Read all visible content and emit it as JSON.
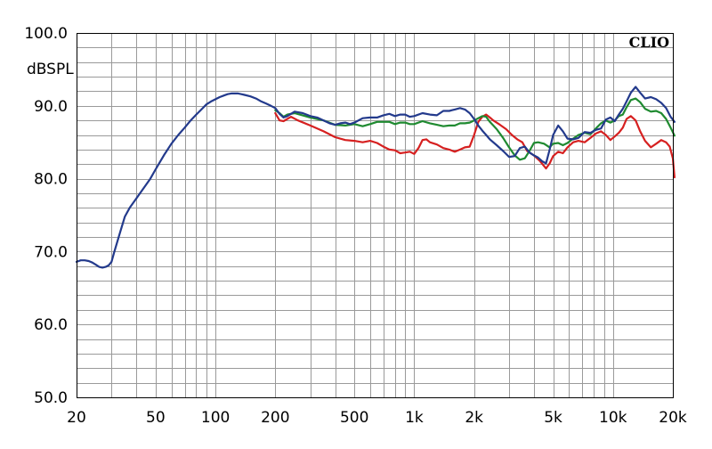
{
  "chart_data": {
    "type": "line",
    "title": "",
    "brand": "CLIO",
    "xlabel": "",
    "ylabel": "dBSPL",
    "x_scale": "log",
    "xlim": [
      20,
      20000
    ],
    "ylim": [
      50,
      100
    ],
    "grid": true,
    "legend": "none",
    "x_ticks": [
      {
        "value": 20,
        "label": "20"
      },
      {
        "value": 50,
        "label": "50"
      },
      {
        "value": 100,
        "label": "100"
      },
      {
        "value": 200,
        "label": "200"
      },
      {
        "value": 500,
        "label": "500"
      },
      {
        "value": 1000,
        "label": "1k"
      },
      {
        "value": 2000,
        "label": "2k"
      },
      {
        "value": 5000,
        "label": "5k"
      },
      {
        "value": 10000,
        "label": "10k"
      },
      {
        "value": 20000,
        "label": "20k"
      }
    ],
    "y_ticks": [
      {
        "value": 100,
        "label": "100.0"
      },
      {
        "value": 90,
        "label": "90.0"
      },
      {
        "value": 80,
        "label": "80.0"
      },
      {
        "value": 70,
        "label": "70.0"
      },
      {
        "value": 60,
        "label": "60.0"
      },
      {
        "value": 50,
        "label": "50.0"
      }
    ],
    "series": [
      {
        "color": "#d62020",
        "points": [
          [
            200,
            89.0
          ],
          [
            210,
            88.0
          ],
          [
            220,
            87.9
          ],
          [
            240,
            88.5
          ],
          [
            260,
            88.0
          ],
          [
            300,
            87.3
          ],
          [
            350,
            86.5
          ],
          [
            400,
            85.7
          ],
          [
            450,
            85.3
          ],
          [
            500,
            85.2
          ],
          [
            550,
            85.0
          ],
          [
            600,
            85.2
          ],
          [
            650,
            84.9
          ],
          [
            700,
            84.4
          ],
          [
            750,
            84.0
          ],
          [
            800,
            83.9
          ],
          [
            850,
            83.5
          ],
          [
            900,
            83.6
          ],
          [
            950,
            83.7
          ],
          [
            1000,
            83.4
          ],
          [
            1050,
            84.2
          ],
          [
            1100,
            85.3
          ],
          [
            1150,
            85.4
          ],
          [
            1200,
            85.0
          ],
          [
            1300,
            84.7
          ],
          [
            1400,
            84.2
          ],
          [
            1500,
            84.0
          ],
          [
            1600,
            83.7
          ],
          [
            1700,
            84.0
          ],
          [
            1800,
            84.3
          ],
          [
            1900,
            84.4
          ],
          [
            2000,
            86.0
          ],
          [
            2100,
            87.8
          ],
          [
            2200,
            88.5
          ],
          [
            2300,
            88.8
          ],
          [
            2400,
            88.4
          ],
          [
            2500,
            88.0
          ],
          [
            2700,
            87.4
          ],
          [
            2900,
            86.8
          ],
          [
            3100,
            86.0
          ],
          [
            3300,
            85.4
          ],
          [
            3500,
            85.0
          ],
          [
            3700,
            83.8
          ],
          [
            4000,
            83.2
          ],
          [
            4300,
            82.4
          ],
          [
            4600,
            81.4
          ],
          [
            4800,
            82.1
          ],
          [
            5000,
            83.1
          ],
          [
            5300,
            83.7
          ],
          [
            5600,
            83.5
          ],
          [
            5900,
            84.3
          ],
          [
            6300,
            85.0
          ],
          [
            6700,
            85.2
          ],
          [
            7200,
            85.0
          ],
          [
            7700,
            85.6
          ],
          [
            8200,
            86.2
          ],
          [
            8700,
            86.5
          ],
          [
            9200,
            86.0
          ],
          [
            9700,
            85.3
          ],
          [
            10200,
            85.8
          ],
          [
            10700,
            86.3
          ],
          [
            11200,
            87.0
          ],
          [
            11700,
            88.2
          ],
          [
            12300,
            88.6
          ],
          [
            13000,
            88.0
          ],
          [
            13700,
            86.5
          ],
          [
            14500,
            85.2
          ],
          [
            15500,
            84.3
          ],
          [
            16500,
            84.8
          ],
          [
            17500,
            85.3
          ],
          [
            18500,
            85.0
          ],
          [
            19300,
            84.4
          ],
          [
            20000,
            82.8
          ],
          [
            20500,
            80.2
          ]
        ]
      },
      {
        "color": "#1f8a30",
        "points": [
          [
            200,
            89.4
          ],
          [
            210,
            89.0
          ],
          [
            220,
            88.5
          ],
          [
            230,
            88.8
          ],
          [
            250,
            89.0
          ],
          [
            300,
            88.4
          ],
          [
            350,
            88.0
          ],
          [
            400,
            87.4
          ],
          [
            450,
            87.3
          ],
          [
            500,
            87.5
          ],
          [
            550,
            87.2
          ],
          [
            600,
            87.5
          ],
          [
            650,
            87.8
          ],
          [
            700,
            87.8
          ],
          [
            750,
            87.8
          ],
          [
            800,
            87.5
          ],
          [
            850,
            87.7
          ],
          [
            900,
            87.7
          ],
          [
            950,
            87.5
          ],
          [
            1000,
            87.5
          ],
          [
            1100,
            87.9
          ],
          [
            1200,
            87.6
          ],
          [
            1300,
            87.4
          ],
          [
            1400,
            87.2
          ],
          [
            1500,
            87.3
          ],
          [
            1600,
            87.3
          ],
          [
            1700,
            87.6
          ],
          [
            1800,
            87.6
          ],
          [
            1900,
            87.7
          ],
          [
            2000,
            88.0
          ],
          [
            2100,
            88.3
          ],
          [
            2200,
            88.6
          ],
          [
            2300,
            88.5
          ],
          [
            2400,
            87.8
          ],
          [
            2500,
            87.3
          ],
          [
            2600,
            86.8
          ],
          [
            2800,
            85.6
          ],
          [
            3000,
            84.3
          ],
          [
            3200,
            83.2
          ],
          [
            3400,
            82.6
          ],
          [
            3600,
            82.8
          ],
          [
            3800,
            83.8
          ],
          [
            4000,
            84.9
          ],
          [
            4200,
            85.0
          ],
          [
            4500,
            84.8
          ],
          [
            4800,
            84.3
          ],
          [
            5000,
            84.8
          ],
          [
            5300,
            84.9
          ],
          [
            5600,
            84.6
          ],
          [
            5900,
            84.9
          ],
          [
            6300,
            85.5
          ],
          [
            6700,
            86.0
          ],
          [
            7200,
            86.3
          ],
          [
            7700,
            86.1
          ],
          [
            8200,
            86.9
          ],
          [
            8700,
            87.6
          ],
          [
            9200,
            88.0
          ],
          [
            9700,
            87.7
          ],
          [
            10200,
            88.0
          ],
          [
            10700,
            88.6
          ],
          [
            11200,
            88.8
          ],
          [
            11700,
            89.8
          ],
          [
            12300,
            90.8
          ],
          [
            13000,
            91.0
          ],
          [
            13700,
            90.5
          ],
          [
            14500,
            89.6
          ],
          [
            15500,
            89.2
          ],
          [
            16500,
            89.3
          ],
          [
            17500,
            89.0
          ],
          [
            18500,
            88.2
          ],
          [
            19500,
            87.0
          ],
          [
            20500,
            85.9
          ]
        ]
      },
      {
        "color": "#233a8c",
        "points": [
          [
            20,
            68.6
          ],
          [
            21,
            68.8
          ],
          [
            22,
            68.8
          ],
          [
            23,
            68.7
          ],
          [
            24,
            68.5
          ],
          [
            25,
            68.2
          ],
          [
            26,
            67.9
          ],
          [
            27,
            67.8
          ],
          [
            28,
            67.9
          ],
          [
            29,
            68.1
          ],
          [
            30,
            68.6
          ],
          [
            31,
            70.0
          ],
          [
            33,
            72.5
          ],
          [
            35,
            74.8
          ],
          [
            37,
            76.0
          ],
          [
            40,
            77.3
          ],
          [
            43,
            78.5
          ],
          [
            47,
            80.0
          ],
          [
            50,
            81.3
          ],
          [
            55,
            83.2
          ],
          [
            60,
            84.8
          ],
          [
            65,
            86.0
          ],
          [
            70,
            87.0
          ],
          [
            75,
            88.0
          ],
          [
            80,
            88.8
          ],
          [
            85,
            89.5
          ],
          [
            90,
            90.2
          ],
          [
            95,
            90.6
          ],
          [
            100,
            90.9
          ],
          [
            105,
            91.2
          ],
          [
            110,
            91.4
          ],
          [
            115,
            91.6
          ],
          [
            120,
            91.7
          ],
          [
            125,
            91.7
          ],
          [
            130,
            91.7
          ],
          [
            135,
            91.6
          ],
          [
            140,
            91.5
          ],
          [
            150,
            91.3
          ],
          [
            160,
            91.0
          ],
          [
            170,
            90.6
          ],
          [
            180,
            90.3
          ],
          [
            190,
            90.0
          ],
          [
            200,
            89.7
          ],
          [
            210,
            88.9
          ],
          [
            220,
            88.4
          ],
          [
            230,
            88.6
          ],
          [
            250,
            89.2
          ],
          [
            275,
            89.0
          ],
          [
            300,
            88.6
          ],
          [
            325,
            88.4
          ],
          [
            350,
            88.0
          ],
          [
            375,
            87.6
          ],
          [
            400,
            87.4
          ],
          [
            425,
            87.6
          ],
          [
            450,
            87.7
          ],
          [
            475,
            87.5
          ],
          [
            500,
            87.7
          ],
          [
            550,
            88.3
          ],
          [
            600,
            88.4
          ],
          [
            650,
            88.4
          ],
          [
            700,
            88.7
          ],
          [
            750,
            88.9
          ],
          [
            800,
            88.6
          ],
          [
            850,
            88.8
          ],
          [
            900,
            88.8
          ],
          [
            950,
            88.5
          ],
          [
            1000,
            88.6
          ],
          [
            1100,
            89.0
          ],
          [
            1200,
            88.8
          ],
          [
            1300,
            88.7
          ],
          [
            1400,
            89.3
          ],
          [
            1500,
            89.3
          ],
          [
            1600,
            89.5
          ],
          [
            1700,
            89.7
          ],
          [
            1800,
            89.5
          ],
          [
            1900,
            89.0
          ],
          [
            2000,
            88.2
          ],
          [
            2100,
            87.3
          ],
          [
            2200,
            86.6
          ],
          [
            2300,
            86.0
          ],
          [
            2400,
            85.4
          ],
          [
            2600,
            84.6
          ],
          [
            2800,
            83.8
          ],
          [
            3000,
            83.0
          ],
          [
            3200,
            83.1
          ],
          [
            3400,
            84.2
          ],
          [
            3600,
            84.4
          ],
          [
            3800,
            83.6
          ],
          [
            4000,
            83.2
          ],
          [
            4200,
            82.9
          ],
          [
            4400,
            82.4
          ],
          [
            4600,
            82.1
          ],
          [
            4800,
            84.0
          ],
          [
            5000,
            86.0
          ],
          [
            5300,
            87.3
          ],
          [
            5600,
            86.5
          ],
          [
            5900,
            85.5
          ],
          [
            6300,
            85.4
          ],
          [
            6700,
            85.6
          ],
          [
            7200,
            86.4
          ],
          [
            7700,
            86.3
          ],
          [
            8200,
            86.7
          ],
          [
            8700,
            86.9
          ],
          [
            9200,
            88.1
          ],
          [
            9700,
            88.4
          ],
          [
            10200,
            87.9
          ],
          [
            10700,
            88.8
          ],
          [
            11200,
            89.6
          ],
          [
            11700,
            90.6
          ],
          [
            12300,
            91.8
          ],
          [
            13000,
            92.6
          ],
          [
            13700,
            91.8
          ],
          [
            14500,
            91.0
          ],
          [
            15500,
            91.2
          ],
          [
            16500,
            90.9
          ],
          [
            17500,
            90.4
          ],
          [
            18500,
            89.7
          ],
          [
            19500,
            88.5
          ],
          [
            20500,
            87.8
          ]
        ]
      }
    ]
  }
}
